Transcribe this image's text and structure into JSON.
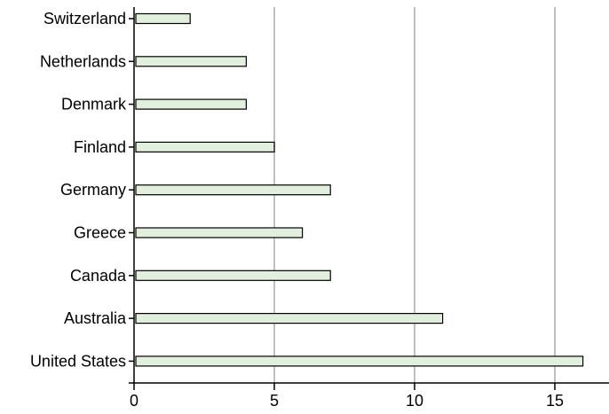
{
  "colors": {
    "bar_fill": "#e0f0dc",
    "bar_stroke": "#000000",
    "grid": "#c0c0c0",
    "axis": "#000000",
    "background": "#ffffff"
  },
  "chart_data": {
    "type": "bar",
    "orientation": "horizontal",
    "title": "",
    "xlabel": "",
    "ylabel": "",
    "categories": [
      "Switzerland",
      "Netherlands",
      "Denmark",
      "Finland",
      "Germany",
      "Greece",
      "Canada",
      "Australia",
      "United States"
    ],
    "values": [
      2,
      4,
      4,
      5,
      7,
      6,
      7,
      11,
      16
    ],
    "xlim": [
      0,
      17
    ],
    "xticks": [
      0,
      5,
      10,
      15
    ],
    "xtick_labels": [
      "0",
      "5",
      "10",
      "15"
    ],
    "grid": "vertical",
    "legend": "none"
  }
}
